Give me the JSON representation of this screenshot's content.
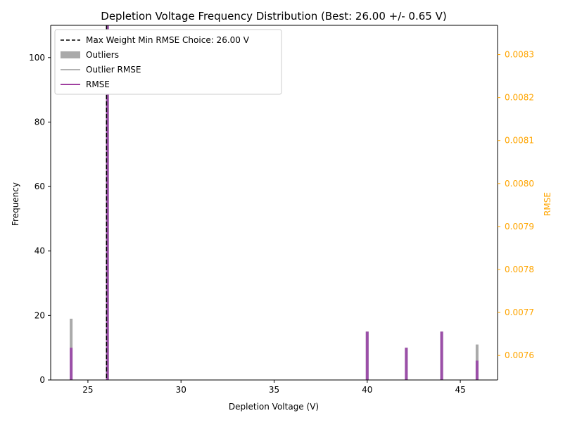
{
  "chart_data": {
    "type": "bar",
    "title": "Depletion Voltage Frequency Distribution (Best: 26.00 +/- 0.65 V)",
    "xlabel": "Depletion Voltage (V)",
    "ylabel": "Frequency",
    "y2label": "RMSE",
    "xlim": [
      23.0,
      47.0
    ],
    "ylim": [
      0,
      110
    ],
    "y2lim": [
      0.007543,
      0.008368
    ],
    "x_ticks": [
      25,
      30,
      35,
      40,
      45
    ],
    "y_ticks": [
      0,
      20,
      40,
      60,
      80,
      100
    ],
    "y2_ticks": [
      0.0076,
      0.0077,
      0.0078,
      0.0079,
      0.008,
      0.0081,
      0.0082,
      0.0083
    ],
    "best_choice": 26.0,
    "grid": false,
    "legend_position": "upper-left",
    "series": [
      {
        "name": "Outliers",
        "color": "#aaaaaa",
        "points": [
          {
            "x": 24.1,
            "y": 19
          },
          {
            "x": 26.05,
            "y": 110
          },
          {
            "x": 40.0,
            "y": 15
          },
          {
            "x": 42.1,
            "y": 10
          },
          {
            "x": 44.0,
            "y": 15
          },
          {
            "x": 45.9,
            "y": 11
          }
        ]
      },
      {
        "name": "RMSE",
        "color": "#9b4fa8",
        "points": [
          {
            "x": 24.1,
            "y": 10
          },
          {
            "x": 26.05,
            "y": 110
          },
          {
            "x": 40.0,
            "y": 15
          },
          {
            "x": 42.1,
            "y": 10
          },
          {
            "x": 44.0,
            "y": 15
          },
          {
            "x": 45.9,
            "y": 6
          }
        ]
      }
    ],
    "legend": [
      {
        "label": "Max Weight Min RMSE Choice: 26.00 V",
        "style": "dashed",
        "color": "#000000"
      },
      {
        "label": "Outliers",
        "style": "patch",
        "color": "#aaaaaa"
      },
      {
        "label": "Outlier RMSE",
        "style": "line",
        "color": "#999999"
      },
      {
        "label": "RMSE",
        "style": "line",
        "color": "#800080"
      }
    ],
    "colors": {
      "axis": "#000000",
      "secondary_axis": "#ffa500",
      "vline": "#000000"
    }
  }
}
